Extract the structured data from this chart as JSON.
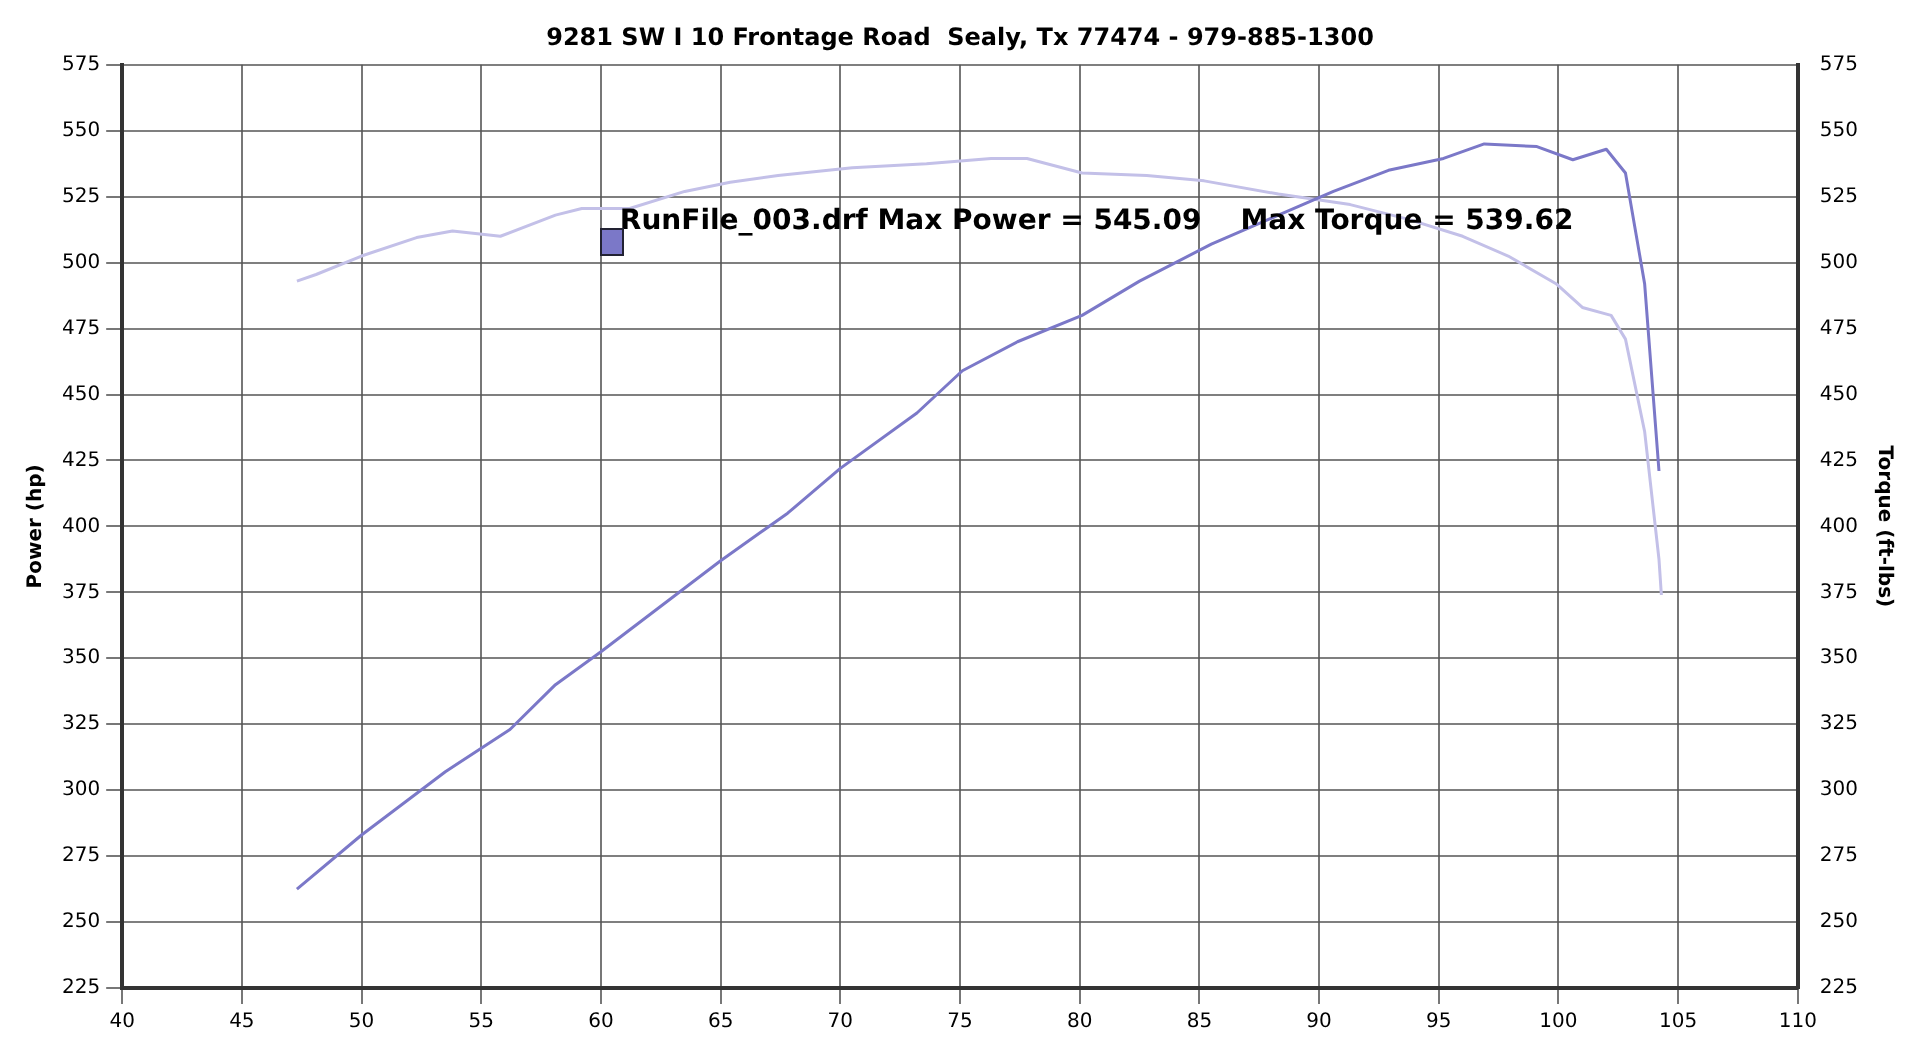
{
  "chart_data": {
    "type": "line",
    "title": "9281 SW I 10 Frontage Road  Sealy, Tx 77474 - 979-885-1300",
    "ylabel": "Power (hp)",
    "y2label": "Torque (ft-lbs)",
    "xlim": [
      40,
      110
    ],
    "xticks": [
      40,
      45,
      50,
      55,
      60,
      65,
      70,
      75,
      80,
      85,
      90,
      95,
      100,
      105,
      110
    ],
    "ylim": [
      225,
      575
    ],
    "yticks": [
      225,
      250,
      275,
      300,
      325,
      350,
      375,
      400,
      425,
      450,
      475,
      500,
      525,
      550,
      575
    ],
    "y2lim": [
      225,
      575
    ],
    "y2ticks": [
      225,
      250,
      275,
      300,
      325,
      350,
      375,
      400,
      425,
      450,
      475,
      500,
      525,
      550,
      575
    ],
    "grid": true,
    "legend": false,
    "marker": "none",
    "line_style": "solid",
    "annotations": [
      "RunFile_003.drf Max Power = 545.09    Max Torque = 539.62"
    ],
    "series": [
      {
        "color": "#7b78c8",
        "x": [
          47.3,
          50,
          53.5,
          56.2,
          58.1,
          60,
          65,
          67.8,
          70,
          73.2,
          75.1,
          77.4,
          80.1,
          82.5,
          85.5,
          88.3,
          90.6,
          92.9,
          95.2,
          96.9,
          99.1,
          100.6,
          102,
          102.8,
          103.6,
          104.2
        ],
        "values": [
          262.5,
          283,
          307,
          323,
          340,
          352.5,
          387,
          405,
          422,
          443,
          459,
          470,
          480,
          493,
          507,
          518,
          527,
          535,
          539.5,
          545,
          544,
          539,
          543,
          534,
          492,
          421
        ]
      },
      {
        "color": "#c3c0e8",
        "axis": "y2",
        "x": [
          47.3,
          48.1,
          50,
          52.3,
          53.8,
          55.8,
          58.1,
          59.2,
          61.2,
          63.5,
          65.4,
          67.4,
          70.5,
          73.6,
          76.3,
          77.8,
          80.1,
          82.8,
          85.2,
          88.3,
          91.3,
          93.7,
          96,
          97.9,
          99.9,
          101,
          102.2,
          102.8,
          103.6,
          104.2,
          104.3
        ],
        "values": [
          493,
          495.5,
          502.5,
          509.5,
          512,
          510,
          518,
          520.5,
          520.5,
          527,
          530.5,
          533,
          536,
          537.5,
          539.5,
          539.5,
          534,
          533,
          531,
          526,
          522,
          516.5,
          510,
          502.5,
          492,
          483,
          480,
          471,
          436,
          387.5,
          374
        ]
      }
    ]
  }
}
